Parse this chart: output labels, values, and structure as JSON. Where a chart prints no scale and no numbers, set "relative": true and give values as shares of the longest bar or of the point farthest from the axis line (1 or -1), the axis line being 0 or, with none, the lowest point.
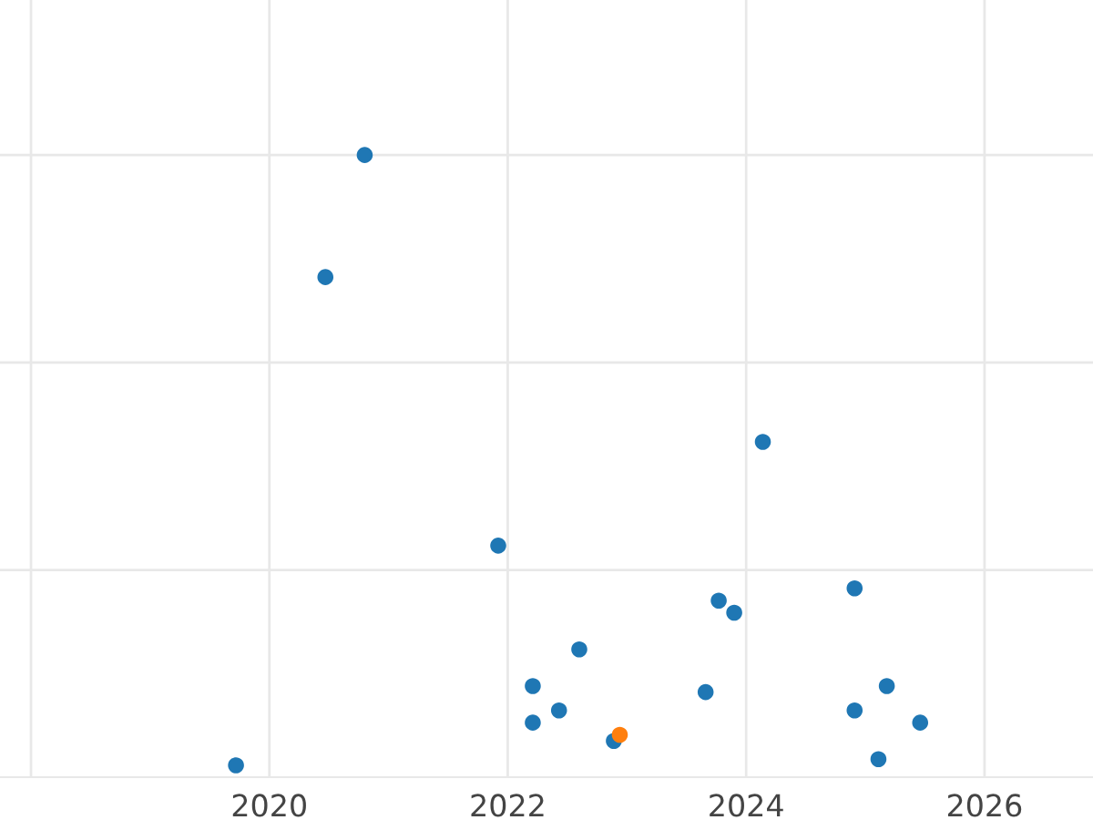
{
  "chart_data": {
    "type": "scatter",
    "relative": true,
    "x": [
      2019.72,
      2020.47,
      2020.8,
      2021.92,
      2022.21,
      2022.21,
      2022.43,
      2022.6,
      2022.89,
      2022.94,
      2023.66,
      2023.77,
      2023.9,
      2024.14,
      2024.91,
      2024.91,
      2025.11,
      2025.18,
      2025.46
    ],
    "values": [
      0,
      0.8,
      1,
      0.36,
      0.13,
      0.07,
      0.09,
      0.19,
      0.04,
      0.05,
      0.12,
      0.27,
      0.25,
      0.53,
      0.29,
      0.09,
      0.01,
      0.13,
      0.07
    ],
    "colors": [
      "#1f77b4",
      "#1f77b4",
      "#1f77b4",
      "#1f77b4",
      "#1f77b4",
      "#1f77b4",
      "#1f77b4",
      "#1f77b4",
      "#1f77b4",
      "#ff7f0e",
      "#1f77b4",
      "#1f77b4",
      "#1f77b4",
      "#1f77b4",
      "#1f77b4",
      "#1f77b4",
      "#1f77b4",
      "#1f77b4",
      "#1f77b4"
    ],
    "xlim": [
      2017.74,
      2026.91
    ],
    "xticks": [
      {
        "value": 2018,
        "label": null
      },
      2020,
      2022,
      2024,
      2026
    ],
    "grid": true,
    "marker": "circle",
    "tick_labels": "x"
  }
}
